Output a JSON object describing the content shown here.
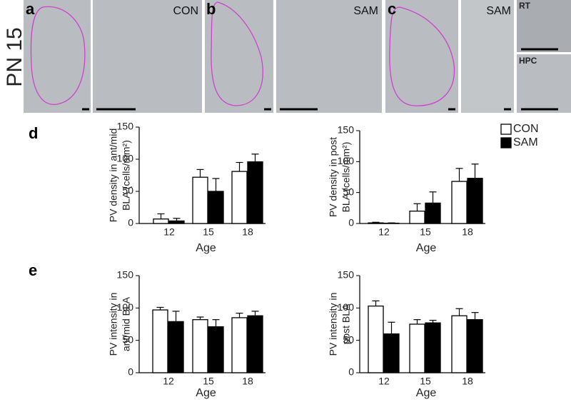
{
  "figure": {
    "row_label": "PN 15",
    "panels": [
      {
        "letter": "a",
        "label": "CON"
      },
      {
        "letter": "b",
        "label": "SAM"
      },
      {
        "letter": "c",
        "label": "SAM",
        "insets": [
          "RT",
          "HPC"
        ]
      }
    ],
    "chart_letters": [
      "d",
      "e"
    ]
  },
  "chart_data": [
    {
      "type": "bar",
      "ylabel": [
        "PV density in ant/mid",
        "BLA (cells/mm²)"
      ],
      "xlabel": "Age",
      "categories": [
        "12",
        "15",
        "18"
      ],
      "ylim": [
        0,
        150
      ],
      "yticks": [
        0,
        50,
        100,
        150
      ],
      "grid": false,
      "series": [
        {
          "color": "#ffffff",
          "values": [
            7,
            72,
            81
          ],
          "errors": [
            8,
            12,
            14
          ]
        },
        {
          "color": "#000000",
          "values": [
            4,
            50,
            96
          ],
          "errors": [
            4,
            20,
            12
          ]
        }
      ]
    },
    {
      "type": "bar",
      "ylabel": [
        "PV density in post",
        "BLA (cells/mm²)"
      ],
      "xlabel": "Age",
      "categories": [
        "12",
        "15",
        "18"
      ],
      "ylim": [
        0,
        150
      ],
      "yticks": [
        0,
        50,
        100,
        150
      ],
      "grid": false,
      "legend": "top-right",
      "series": [
        {
          "name": "CON",
          "color": "#ffffff",
          "values": [
            1,
            20,
            68
          ],
          "errors": [
            1,
            12,
            21
          ]
        },
        {
          "name": "SAM",
          "color": "#000000",
          "values": [
            0.5,
            33,
            73
          ],
          "errors": [
            0.5,
            18,
            23
          ]
        }
      ]
    },
    {
      "type": "bar",
      "ylabel": [
        "PV intensity in",
        "ant/mid BLA"
      ],
      "xlabel": "Age",
      "categories": [
        "12",
        "15",
        "18"
      ],
      "ylim": [
        0,
        150
      ],
      "yticks": [
        0,
        50,
        100,
        150
      ],
      "grid": false,
      "series": [
        {
          "color": "#ffffff",
          "values": [
            97,
            82,
            85
          ],
          "errors": [
            4,
            4,
            7
          ]
        },
        {
          "color": "#000000",
          "values": [
            79,
            71,
            88
          ],
          "errors": [
            16,
            11,
            7
          ]
        }
      ]
    },
    {
      "type": "bar",
      "ylabel": [
        "PV intensity in",
        "post BLA"
      ],
      "xlabel": "Age",
      "categories": [
        "12",
        "15",
        "18"
      ],
      "ylim": [
        0,
        150
      ],
      "yticks": [
        0,
        50,
        100,
        150
      ],
      "grid": false,
      "series": [
        {
          "color": "#ffffff",
          "values": [
            103,
            75,
            88
          ],
          "errors": [
            8,
            7,
            11
          ]
        },
        {
          "color": "#000000",
          "values": [
            60,
            77,
            82
          ],
          "errors": [
            18,
            4,
            11
          ]
        }
      ]
    }
  ]
}
